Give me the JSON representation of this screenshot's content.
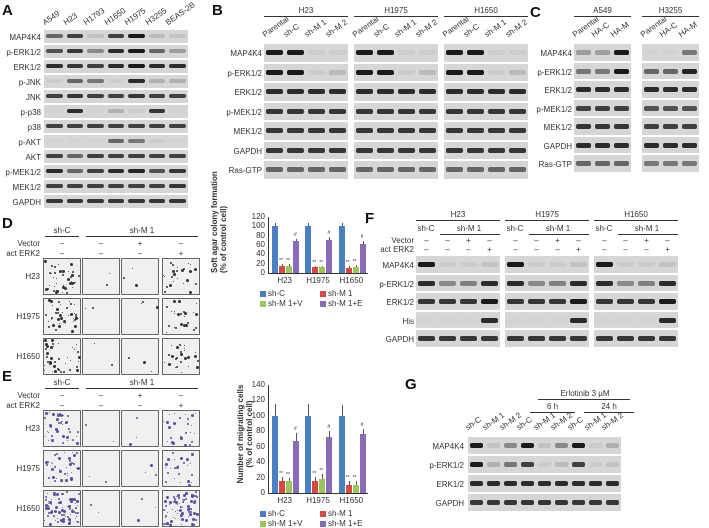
{
  "panels": {
    "A": {
      "letter": "A",
      "cell_lines": [
        "A549",
        "H23",
        "H1793",
        "H1650",
        "H1975",
        "H3255",
        "BEAS-2B"
      ],
      "rows": [
        "MAP4K4",
        "p-ERK1/2",
        "ERK1/2",
        "p-JNK",
        "JNK",
        "p-p38",
        "p38",
        "p-AKT",
        "AKT",
        "p-MEK1/2",
        "MEK1/2",
        "GAPDH"
      ]
    },
    "B": {
      "letter": "B",
      "groups": [
        "H23",
        "H1975",
        "H1650"
      ],
      "lanes": [
        "Parental",
        "sh-C",
        "sh-M 1",
        "sh-M 2"
      ],
      "rows": [
        "MAP4K4",
        "p-ERK1/2",
        "ERK1/2",
        "p-MEK1/2",
        "MEK1/2",
        "GAPDH",
        "Ras-GTP"
      ]
    },
    "C": {
      "letter": "C",
      "groups": [
        "A549",
        "H3255"
      ],
      "lanes": [
        "Parental",
        "HA-C",
        "HA-M"
      ],
      "rows": [
        "MAP4K4",
        "p-ERK1/2",
        "ERK1/2",
        "p-MEK1/2",
        "MEK1/2",
        "GAPDH",
        "Ras-GTP"
      ]
    },
    "D": {
      "letter": "D",
      "header_shC": "sh-C",
      "header_shM": "sh-M 1",
      "vector_label": "Vector",
      "act_label": "act ERK2",
      "vector_signs": [
        "–",
        "–",
        "+",
        "–"
      ],
      "act_signs": [
        "–",
        "–",
        "–",
        "+"
      ],
      "rows": [
        "H23",
        "H1975",
        "H1650"
      ]
    },
    "E": {
      "letter": "E",
      "header_shC": "sh-C",
      "header_shM": "sh-M 1",
      "vector_label": "Vector",
      "act_label": "act ERK2",
      "vector_signs": [
        "–",
        "–",
        "+",
        "–"
      ],
      "act_signs": [
        "–",
        "–",
        "–",
        "+"
      ],
      "rows": [
        "H23",
        "H1975",
        "H1650"
      ]
    },
    "F": {
      "letter": "F",
      "groups": [
        "H23",
        "H1975",
        "H1650"
      ],
      "shC": "sh-C",
      "shM": "sh-M 1",
      "vector_label": "Vector",
      "act_label": "act ERK2",
      "vector_signs": [
        "–",
        "–",
        "+",
        "–"
      ],
      "act_signs": [
        "–",
        "–",
        "–",
        "+"
      ],
      "rows": [
        "MAP4K4",
        "p-ERK1/2",
        "ERK1/2",
        "His",
        "GAPDH"
      ]
    },
    "G": {
      "letter": "G",
      "treatment": "Erlotinib 3 µM",
      "times": [
        "6 h",
        "24 h"
      ],
      "lanes": [
        "sh-C",
        "sh-M 1",
        "sh-M 2",
        "sh-C",
        "sh-M 1",
        "sh-M 2",
        "sh-C",
        "sh-M 1",
        "sh-M 2"
      ],
      "rows": [
        "MAP4K4",
        "p-ERK1/2",
        "ERK1/2",
        "GAPDH"
      ]
    }
  },
  "chart_data": [
    {
      "type": "bar",
      "title": "",
      "ylabel": "Soft agar colony formation (% of control cell)",
      "xlabel": "",
      "categories": [
        "H23",
        "H1975",
        "H1650"
      ],
      "ylim": [
        0,
        120
      ],
      "yticks": [
        "0",
        "20",
        "40",
        "60",
        "80",
        "100",
        "120"
      ],
      "series": [
        {
          "name": "sh-C",
          "color": "#4a7fc1",
          "values": [
            100,
            100,
            100
          ],
          "errors": [
            8,
            7,
            8
          ]
        },
        {
          "name": "sh-M 1",
          "color": "#d9473f",
          "values": [
            15,
            12,
            11
          ],
          "errors": [
            4,
            3,
            3
          ]
        },
        {
          "name": "sh-M 1+V",
          "color": "#9cc55a",
          "values": [
            15,
            12,
            13
          ],
          "errors": [
            4,
            3,
            4
          ]
        },
        {
          "name": "sh-M 1+E",
          "color": "#8a6bb8",
          "values": [
            68,
            71,
            62
          ],
          "errors": [
            5,
            6,
            6
          ]
        }
      ],
      "annotations": [
        "**",
        "#"
      ],
      "legend_position": "bottom"
    },
    {
      "type": "bar",
      "title": "",
      "ylabel": "Number of migrating cells (% of control cell)",
      "xlabel": "",
      "categories": [
        "H23",
        "H1975",
        "H1650"
      ],
      "ylim": [
        0,
        140
      ],
      "yticks": [
        "0",
        "20",
        "40",
        "60",
        "80",
        "100",
        "120",
        "140"
      ],
      "series": [
        {
          "name": "sh-C",
          "color": "#4a7fc1",
          "values": [
            100,
            100,
            100
          ],
          "errors": [
            15,
            16,
            14
          ]
        },
        {
          "name": "sh-M 1",
          "color": "#d9473f",
          "values": [
            16,
            16,
            10
          ],
          "errors": [
            5,
            5,
            5
          ]
        },
        {
          "name": "sh-M 1+V",
          "color": "#9cc55a",
          "values": [
            15,
            18,
            11
          ],
          "errors": [
            4,
            6,
            5
          ]
        },
        {
          "name": "sh-M 1+E",
          "color": "#8a6bb8",
          "values": [
            68,
            72,
            76
          ],
          "errors": [
            10,
            9,
            7
          ]
        }
      ],
      "annotations": [
        "**",
        "#"
      ],
      "legend_position": "bottom"
    }
  ]
}
